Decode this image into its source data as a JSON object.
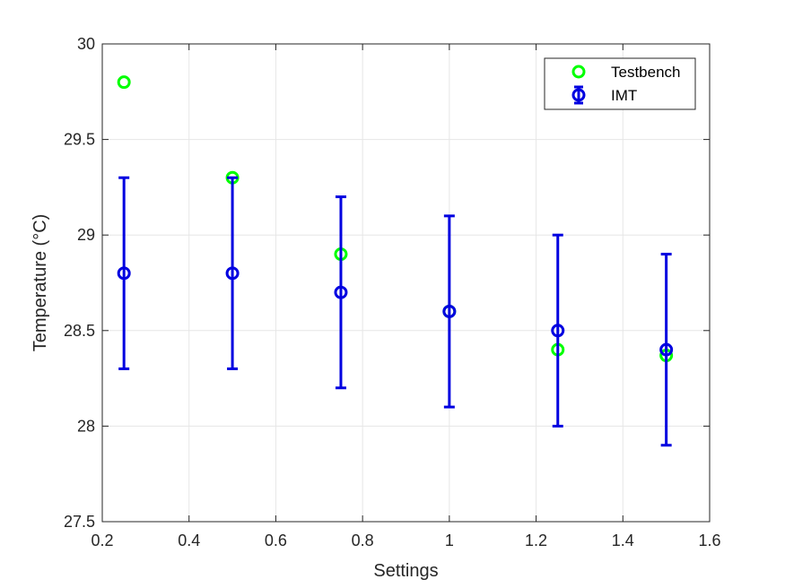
{
  "chart_data": {
    "type": "scatter",
    "xlabel": "Settings",
    "ylabel": "Temperature (°C)",
    "xlim": [
      0.2,
      1.6
    ],
    "ylim": [
      27.5,
      30
    ],
    "xticks": [
      0.2,
      0.4,
      0.6,
      0.8,
      1,
      1.2,
      1.4,
      1.6
    ],
    "yticks": [
      27.5,
      28,
      28.5,
      29,
      29.5,
      30
    ],
    "grid": true,
    "legend_position": "top-right",
    "series": [
      {
        "name": "Testbench",
        "marker": "circle",
        "color": "#00FF00",
        "x": [
          0.25,
          0.5,
          0.75,
          1.0,
          1.25,
          1.5
        ],
        "y": [
          29.8,
          29.3,
          28.9,
          28.6,
          28.4,
          28.37
        ]
      },
      {
        "name": "IMT",
        "marker": "circle",
        "errorbar": true,
        "color": "#0000E0",
        "x": [
          0.25,
          0.5,
          0.75,
          1.0,
          1.25,
          1.5
        ],
        "y": [
          28.8,
          28.8,
          28.7,
          28.6,
          28.5,
          28.4
        ],
        "err_low": [
          0.5,
          0.5,
          0.5,
          0.5,
          0.5,
          0.5
        ],
        "err_high": [
          0.5,
          0.5,
          0.5,
          0.5,
          0.5,
          0.5
        ]
      }
    ]
  }
}
